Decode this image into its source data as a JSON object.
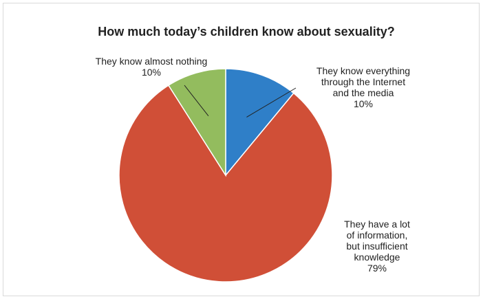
{
  "chart_data": {
    "type": "pie",
    "title": "How much today’s children know about sexuality?",
    "slices": [
      {
        "label_lines": [
          "They know everything",
          "through the Internet",
          "and the media"
        ],
        "percent_label": "10%",
        "value": 11,
        "color": "#2f7fc8"
      },
      {
        "label_lines": [
          "They have a lot",
          "of information,",
          "but insufficient",
          "knowledge"
        ],
        "percent_label": "79%",
        "value": 80,
        "color": "#d04f37"
      },
      {
        "label_lines": [
          "They know almost nothing"
        ],
        "percent_label": "10%",
        "value": 9,
        "color": "#93bc5e"
      }
    ],
    "legend": "none",
    "start_angle": "12 o'clock, clockwise"
  }
}
